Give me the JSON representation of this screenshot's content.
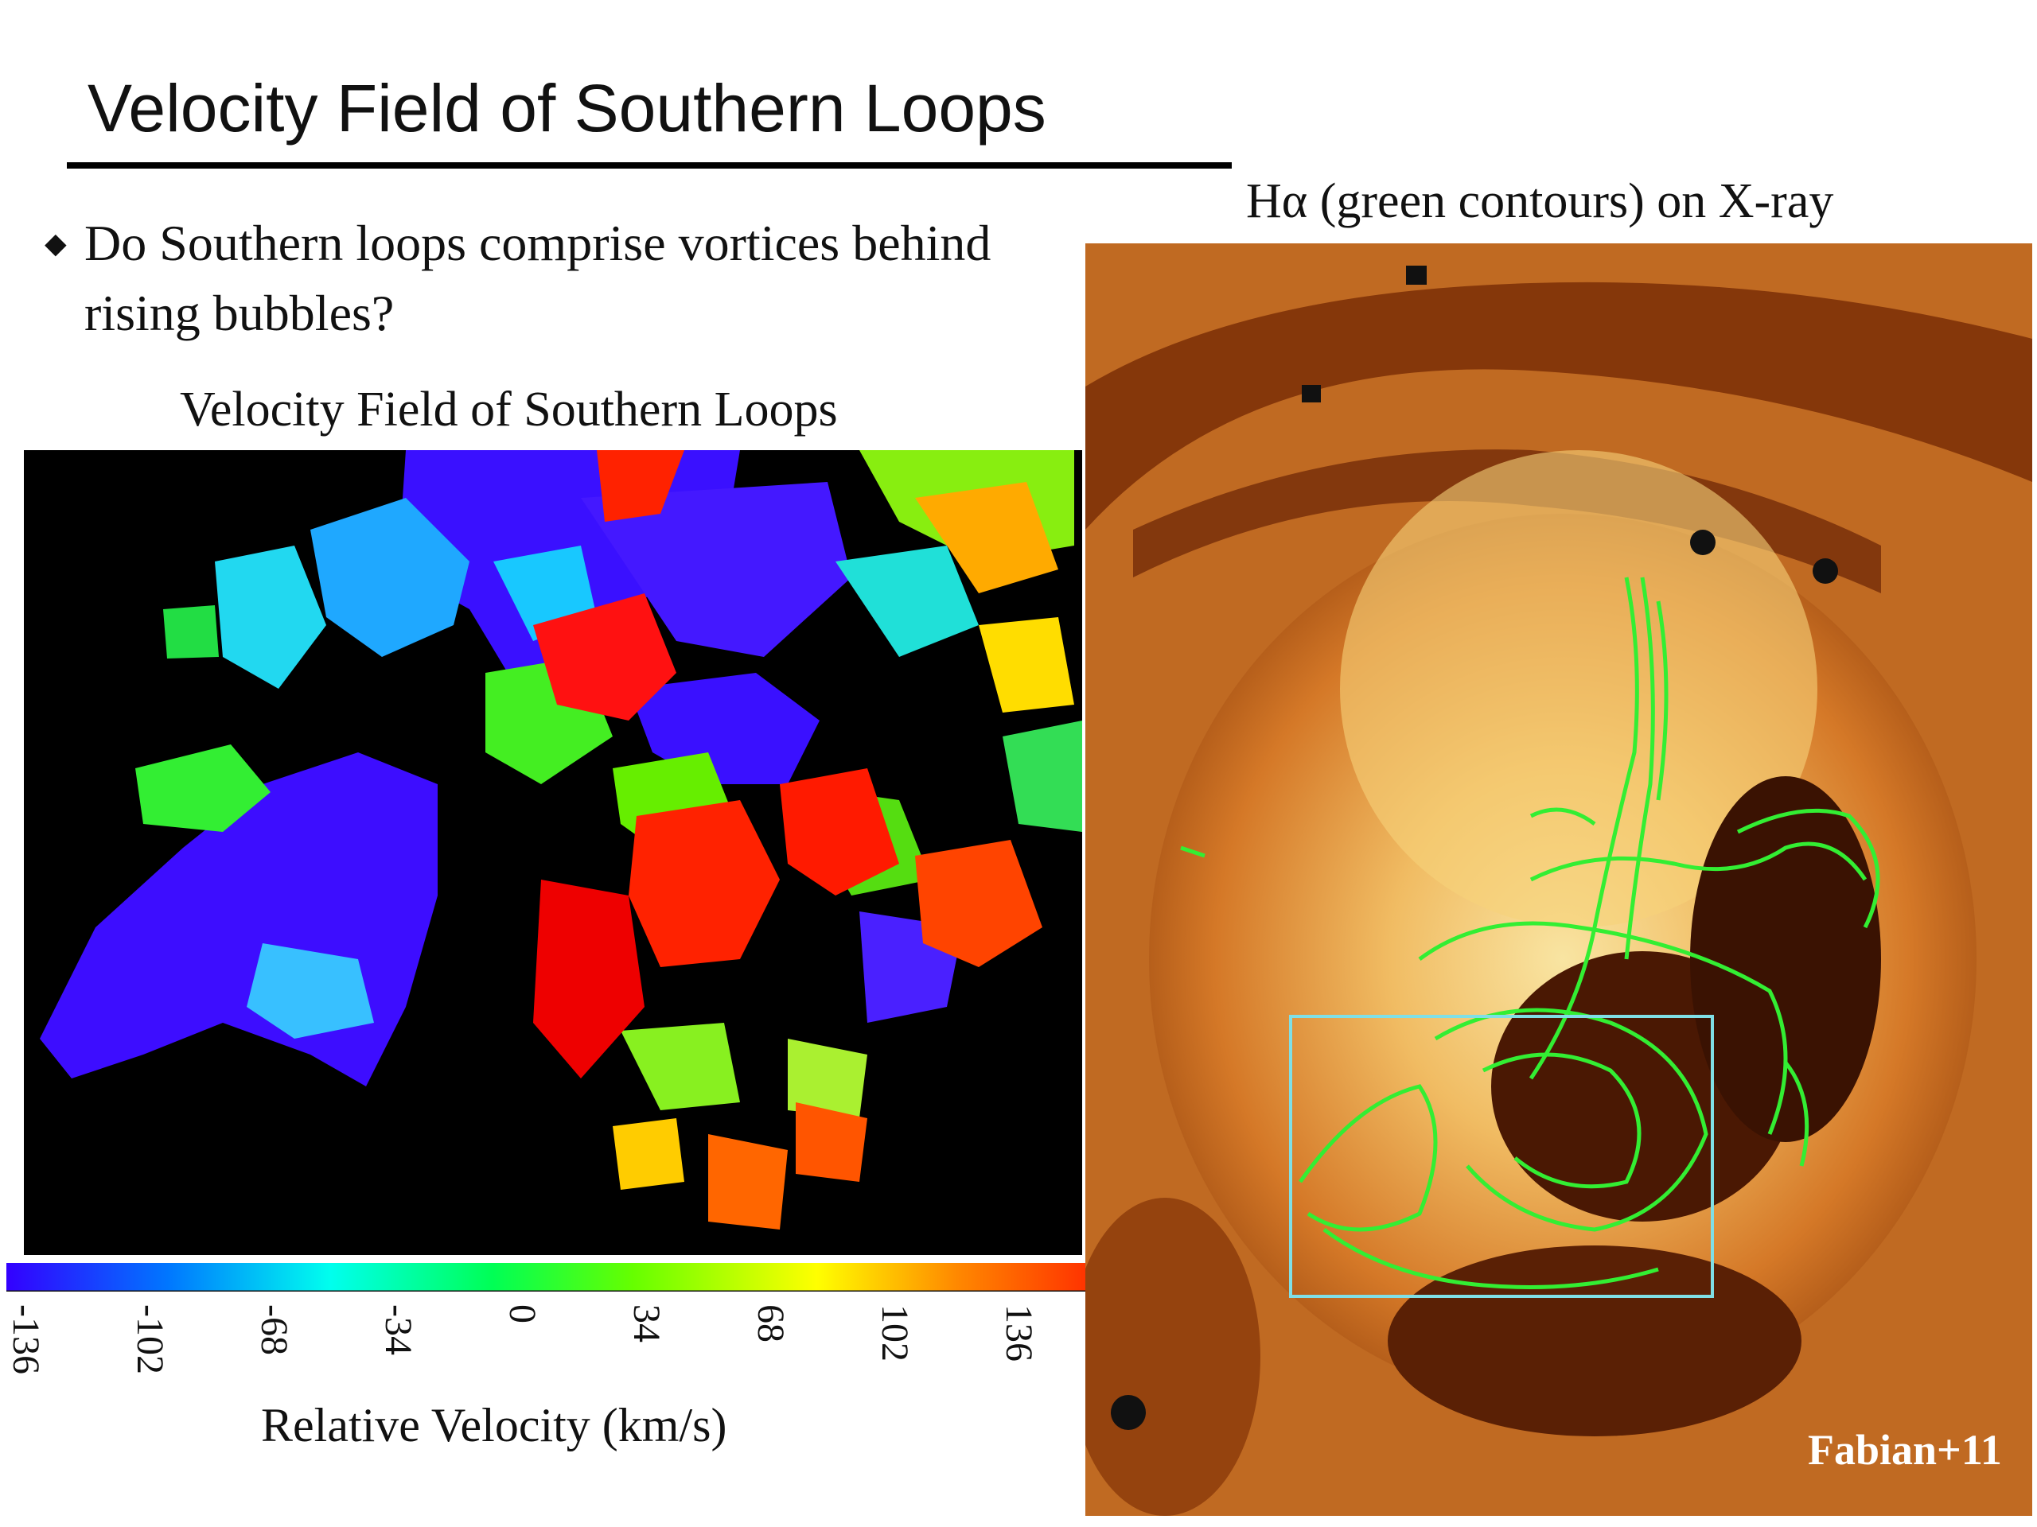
{
  "slide": {
    "title": "Velocity Field of Southern Loops",
    "bullet": "Do Southern loops comprise vortices behind rising bubbles?",
    "bullet_marker": "◆"
  },
  "left_panel": {
    "caption": "Velocity Field of Southern Loops",
    "colorbar": {
      "ticks": [
        "-136",
        "-102",
        "-68",
        "-34",
        "0",
        "34",
        "68",
        "102",
        "136"
      ],
      "label": "Relative Velocity (km/s)",
      "colors": [
        "#3300ff",
        "#0077ff",
        "#00ffee",
        "#00ff55",
        "#66ff00",
        "#ffff00",
        "#ff8800",
        "#ff3300"
      ]
    }
  },
  "right_panel": {
    "caption": "Hα (green contours) on X-ray",
    "credit": "Fabian+11",
    "contour_color": "#33ee33",
    "box_color": "#7fdfe6"
  }
}
